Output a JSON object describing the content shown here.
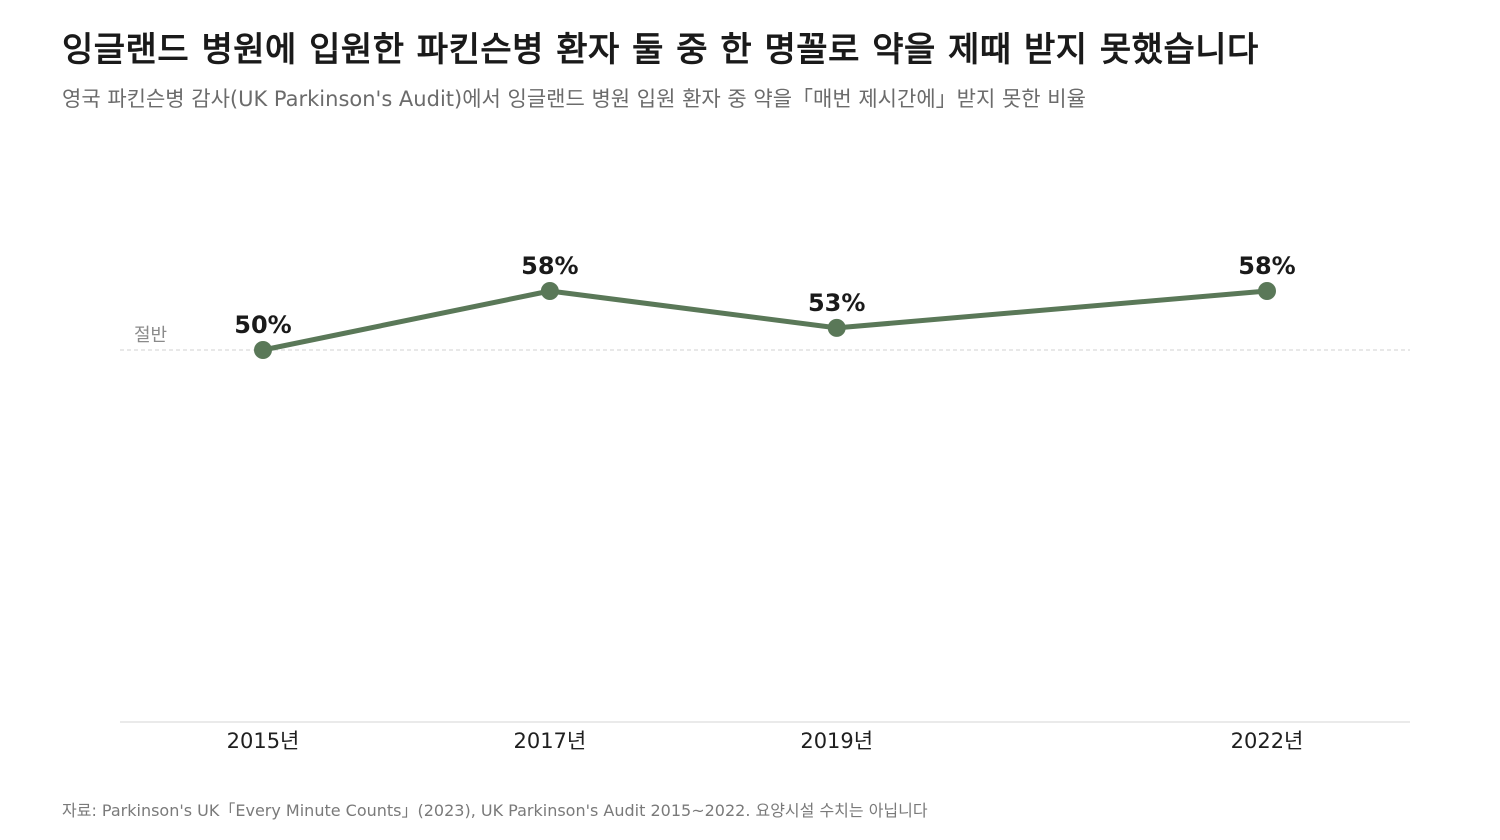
{
  "title": "잉글랜드 병원에 입원한 파킨슨병 환자 둘 중 한 명꼴로 약을 제때 받지 못했습니다",
  "subtitle": "영국 파킨슨병 감사(UK Parkinson's Audit)에서 잉글랜드 병원 입원 환자 중 약을「매번 제시간에」받지 못한 비율",
  "source": "자료: Parkinson's UK「Every Minute Counts」(2023), UK Parkinson's Audit 2015~2022. 요양시설 수치는 아닙니다",
  "colors": {
    "line": "#5a7858",
    "reference": "#d0d0d0",
    "axis": "#d6d6d6",
    "reference_label": "#8a8a8a"
  },
  "chart_data": {
    "type": "line",
    "title": "잉글랜드 병원에 입원한 파킨슨병 환자 둘 중 한 명꼴로 약을 제때 받지 못했습니다",
    "xlabel": "",
    "ylabel": "",
    "x": [
      2015,
      2017,
      2019,
      2022
    ],
    "categories": [
      "2015년",
      "2017년",
      "2019년",
      "2022년"
    ],
    "values": [
      50,
      58,
      53,
      58
    ],
    "data_labels": [
      "50%",
      "58%",
      "53%",
      "58%"
    ],
    "xlim": [
      2014,
      2023
    ],
    "ylim": [
      0,
      66
    ],
    "grid": false,
    "reference_line": {
      "value": 50,
      "label": "절반"
    }
  }
}
